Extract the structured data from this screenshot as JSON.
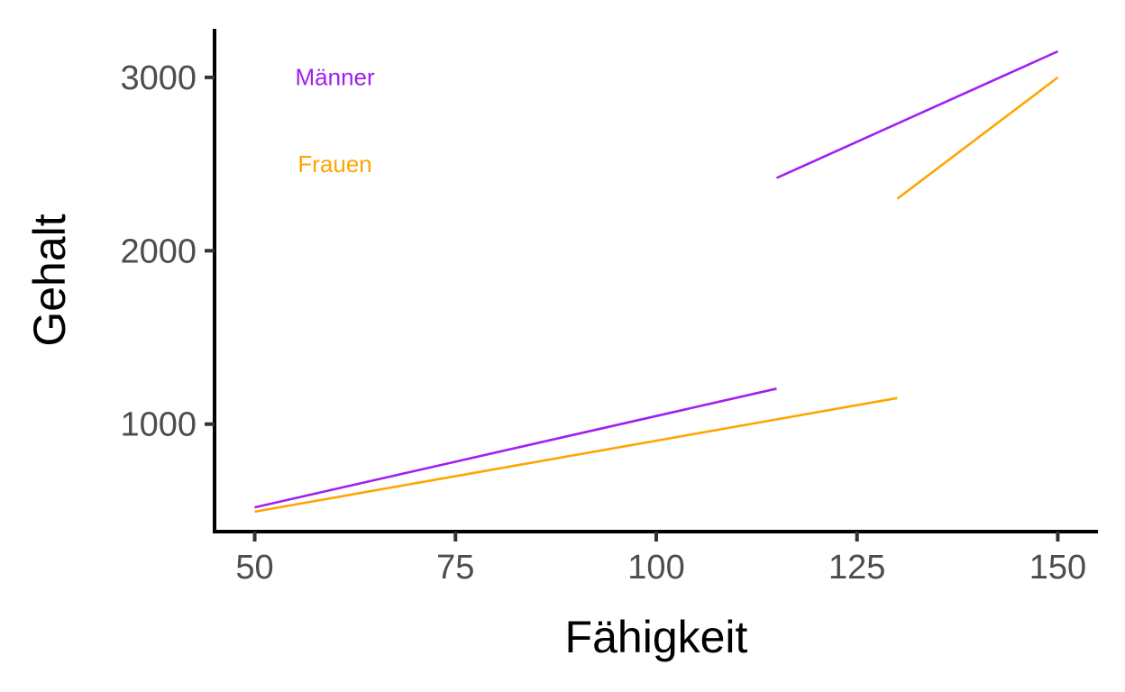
{
  "chart_data": {
    "type": "line",
    "xlabel": "Fähigkeit",
    "ylabel": "Gehalt",
    "xlim": [
      45,
      155
    ],
    "ylim": [
      380,
      3280
    ],
    "x_ticks": [
      50,
      75,
      100,
      125,
      150
    ],
    "y_ticks": [
      1000,
      2000,
      3000
    ],
    "grid": false,
    "legend": "none",
    "annotations": [
      {
        "text": "Männer",
        "x": 60,
        "y": 2990,
        "color": "#a020f0"
      },
      {
        "text": "Frauen",
        "x": 60,
        "y": 2490,
        "color": "#ffa500"
      }
    ],
    "segments": [
      {
        "group": "Männer",
        "color": "#a020f0",
        "x": [
          50,
          115
        ],
        "y": [
          520,
          1205
        ]
      },
      {
        "group": "Männer",
        "color": "#a020f0",
        "x": [
          115,
          150
        ],
        "y": [
          2420,
          3150
        ]
      },
      {
        "group": "Frauen",
        "color": "#ffa500",
        "x": [
          50,
          130
        ],
        "y": [
          495,
          1150
        ]
      },
      {
        "group": "Frauen",
        "color": "#ffa500",
        "x": [
          130,
          150
        ],
        "y": [
          2300,
          3000
        ]
      }
    ]
  }
}
